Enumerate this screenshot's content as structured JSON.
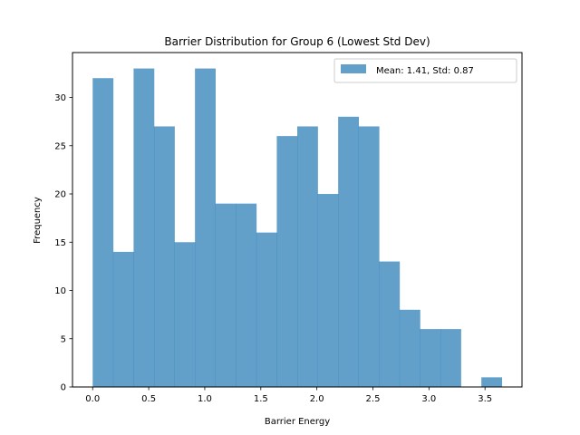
{
  "chart_data": {
    "type": "bar",
    "title": "Barrier Distribution for Group 6 (Lowest Std Dev)",
    "xlabel": "Barrier Energy",
    "ylabel": "Frequency",
    "xlim": [
      -0.18,
      3.83
    ],
    "ylim": [
      0,
      34.65
    ],
    "x_ticks": [
      0.0,
      0.5,
      1.0,
      1.5,
      2.0,
      2.5,
      3.0,
      3.5
    ],
    "x_tick_labels": [
      "0.0",
      "0.5",
      "1.0",
      "1.5",
      "2.0",
      "2.5",
      "3.0",
      "3.5"
    ],
    "y_ticks": [
      0,
      5,
      10,
      15,
      20,
      25,
      30
    ],
    "y_tick_labels": [
      "0",
      "5",
      "10",
      "15",
      "20",
      "25",
      "30"
    ],
    "bin_edges": [
      0.0,
      0.1825,
      0.365,
      0.5475,
      0.73,
      0.9125,
      1.095,
      1.2775,
      1.46,
      1.6425,
      1.825,
      2.0075,
      2.19,
      2.3725,
      2.555,
      2.7375,
      2.92,
      3.1025,
      3.285,
      3.4675,
      3.65
    ],
    "values": [
      32,
      14,
      33,
      27,
      15,
      33,
      19,
      19,
      16,
      26,
      27,
      20,
      28,
      27,
      13,
      8,
      6,
      6,
      0,
      1
    ],
    "series": [
      {
        "name": "Mean: 1.41, Std: 0.87",
        "values": [
          32,
          14,
          33,
          27,
          15,
          33,
          19,
          19,
          16,
          26,
          27,
          20,
          28,
          27,
          13,
          8,
          6,
          6,
          0,
          1
        ]
      }
    ],
    "grid": false,
    "legend_position": "top-right",
    "bar_color": "#1f77b4",
    "bar_opacity": 0.7
  }
}
